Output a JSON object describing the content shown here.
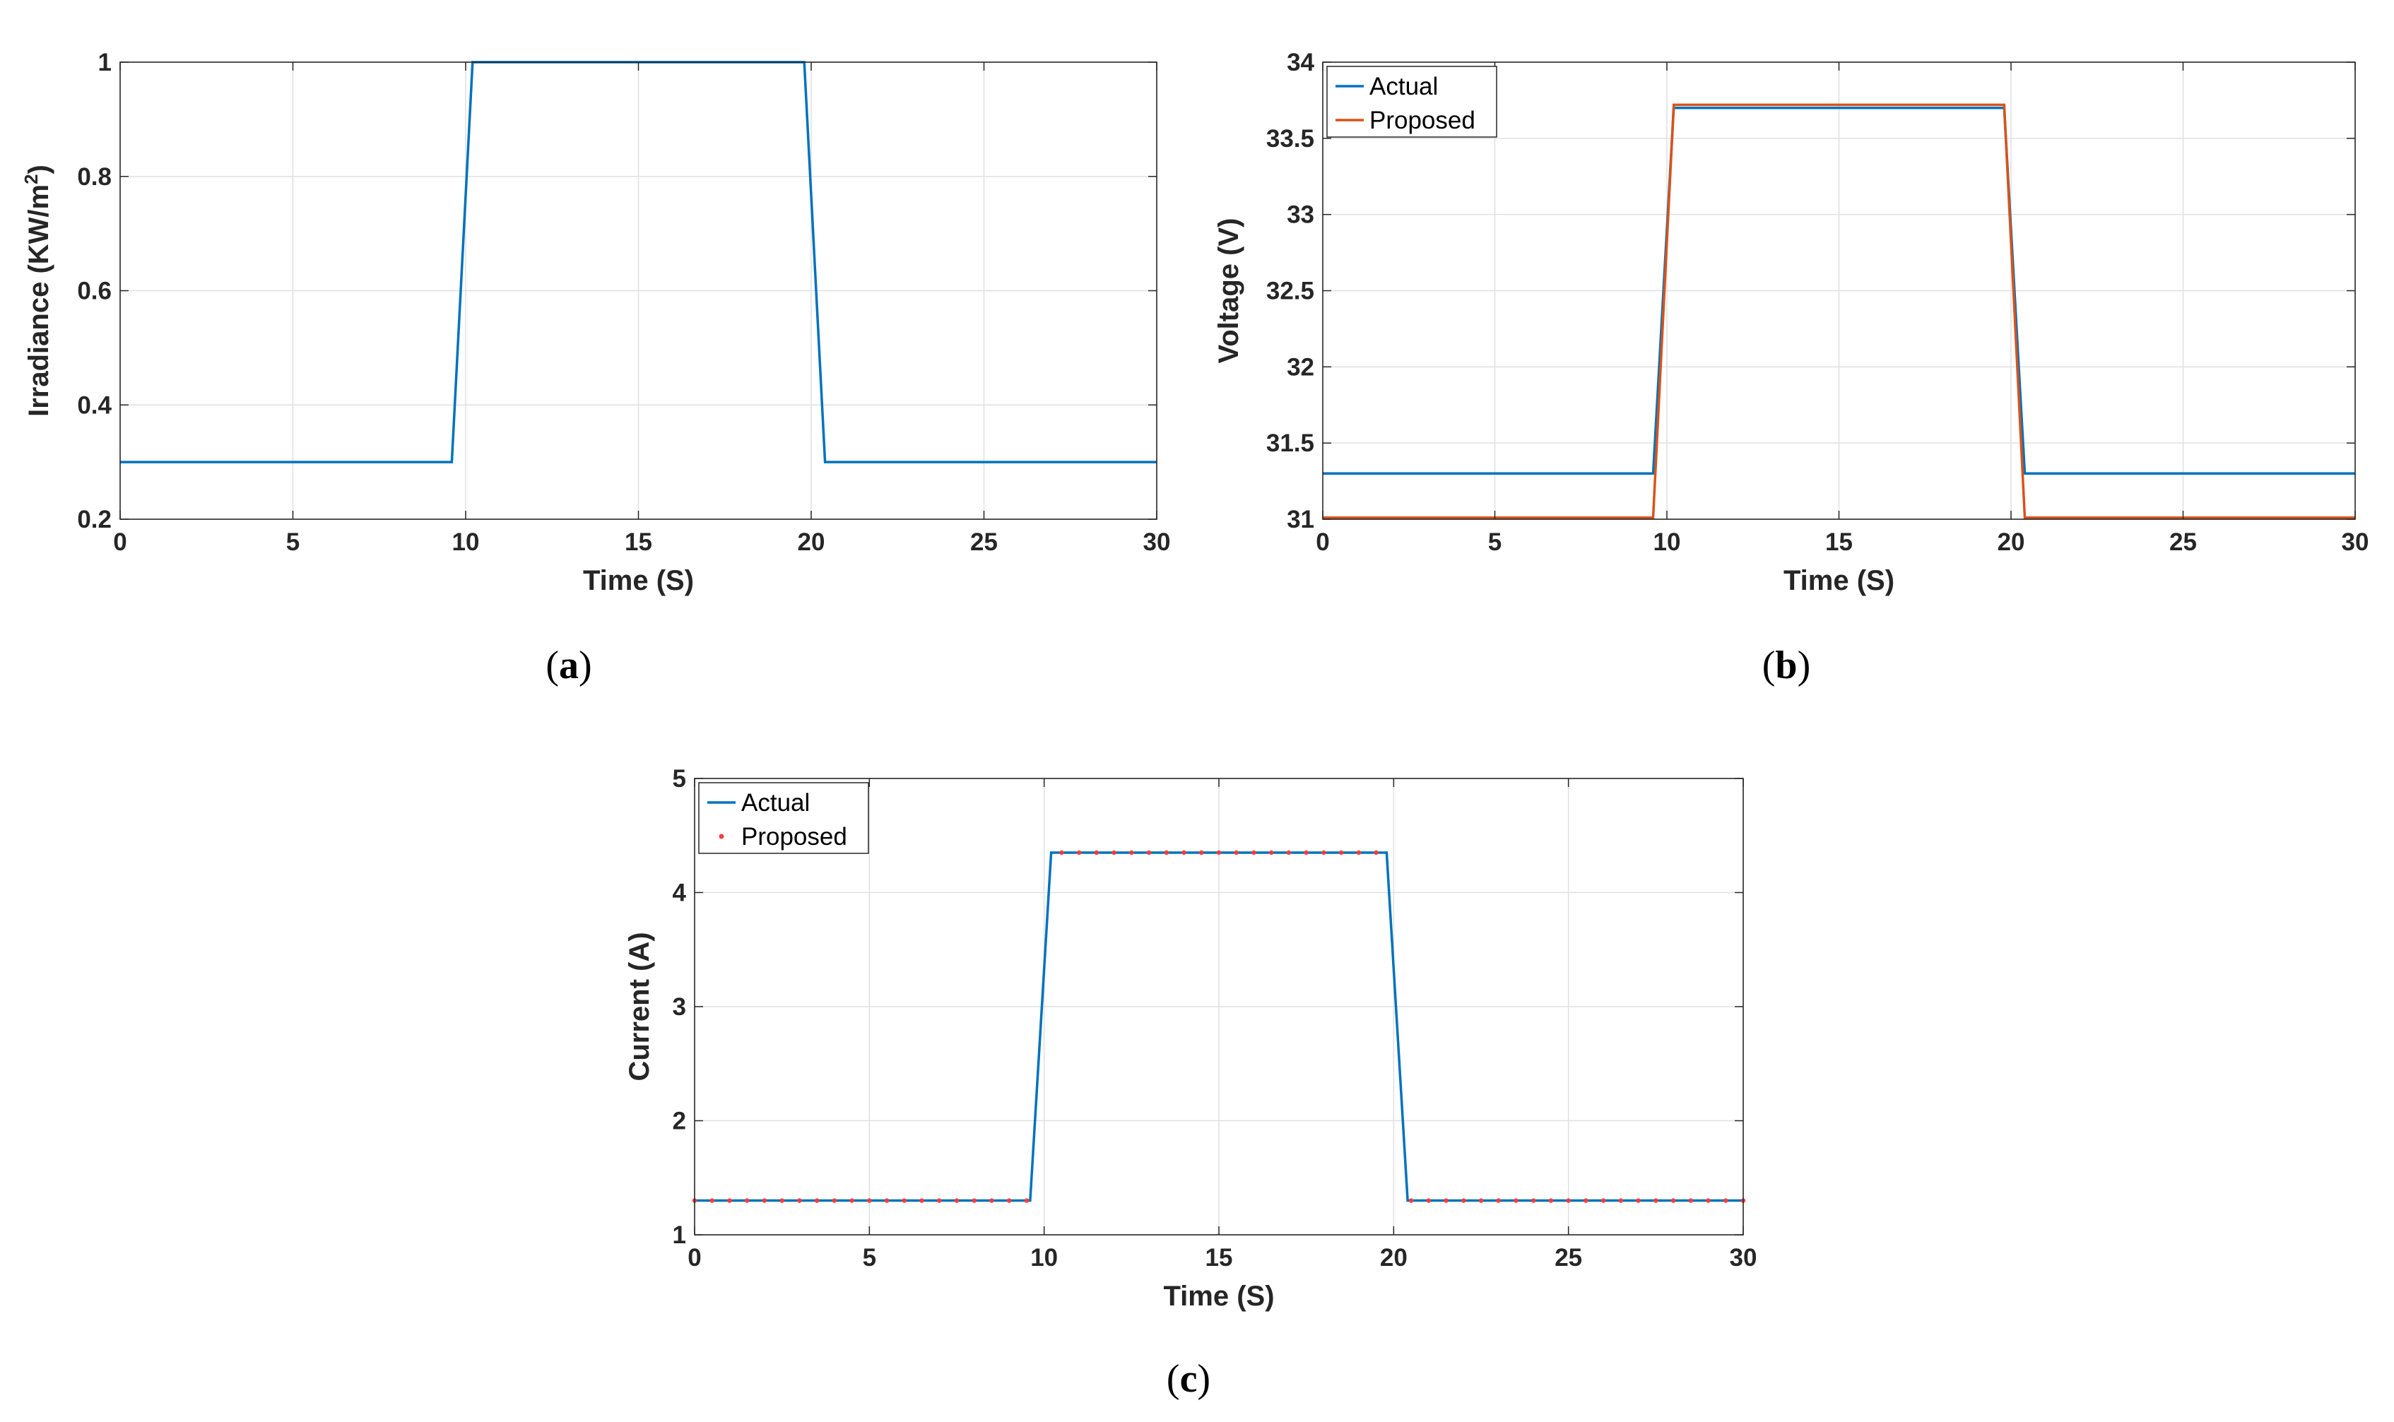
{
  "colors": {
    "actual": "#0072BD",
    "proposed": "#D95319",
    "proposed_marker": "#FF3B3B",
    "grid": "#E0E0E0",
    "axis": "#262626"
  },
  "chart_data": [
    {
      "id": "a",
      "type": "line",
      "caption_letter": "a",
      "xlabel": "Time (S)",
      "ylabel": "Irradiance (KW/m",
      "ylabel_sup": "2",
      "ylabel_end": ")",
      "xlim": [
        0,
        30
      ],
      "ylim": [
        0.2,
        1
      ],
      "xticks": [
        0,
        5,
        10,
        15,
        20,
        25,
        30
      ],
      "xtick_labels": [
        "0",
        "5",
        "10",
        "15",
        "20",
        "25",
        "30"
      ],
      "yticks": [
        0.2,
        0.4,
        0.6,
        0.8,
        1
      ],
      "ytick_labels": [
        "0.2",
        "0.4",
        "0.6",
        "0.8",
        "1"
      ],
      "grid": true,
      "series": [
        {
          "name": "Irradiance",
          "style": "line",
          "color": "#0072BD",
          "x": [
            0,
            9.6,
            10.2,
            19.8,
            20.4,
            30
          ],
          "y": [
            0.3,
            0.3,
            1.0,
            1.0,
            0.3,
            0.3
          ]
        }
      ]
    },
    {
      "id": "b",
      "type": "line",
      "caption_letter": "b",
      "xlabel": "Time (S)",
      "ylabel": "Voltage (V)",
      "xlim": [
        0,
        30
      ],
      "ylim": [
        31,
        34
      ],
      "xticks": [
        0,
        5,
        10,
        15,
        20,
        25,
        30
      ],
      "xtick_labels": [
        "0",
        "5",
        "10",
        "15",
        "20",
        "25",
        "30"
      ],
      "yticks": [
        31,
        31.5,
        32,
        32.5,
        33,
        33.5,
        34
      ],
      "ytick_labels": [
        "31",
        "31.5",
        "32",
        "32.5",
        "33",
        "33.5",
        "34"
      ],
      "grid": true,
      "legend": {
        "position": "top-left",
        "entries": [
          "Actual",
          "Proposed"
        ]
      },
      "series": [
        {
          "name": "Actual",
          "style": "line",
          "color": "#0072BD",
          "x": [
            0,
            9.6,
            10.2,
            19.8,
            20.4,
            30
          ],
          "y": [
            31.3,
            31.3,
            33.7,
            33.7,
            31.3,
            31.3
          ]
        },
        {
          "name": "Proposed",
          "style": "line",
          "color": "#D95319",
          "x": [
            0,
            9.6,
            10.2,
            19.8,
            20.4,
            30
          ],
          "y": [
            31.01,
            31.01,
            33.72,
            33.72,
            31.01,
            31.01
          ]
        }
      ]
    },
    {
      "id": "c",
      "type": "line",
      "caption_letter": "c",
      "xlabel": "Time (S)",
      "ylabel": "Current (A)",
      "xlim": [
        0,
        30
      ],
      "ylim": [
        1,
        5
      ],
      "xticks": [
        0,
        5,
        10,
        15,
        20,
        25,
        30
      ],
      "xtick_labels": [
        "0",
        "5",
        "10",
        "15",
        "20",
        "25",
        "30"
      ],
      "yticks": [
        1,
        2,
        3,
        4,
        5
      ],
      "ytick_labels": [
        "1",
        "2",
        "3",
        "4",
        "5"
      ],
      "grid": true,
      "legend": {
        "position": "top-left",
        "entries": [
          "Actual",
          "Proposed"
        ]
      },
      "series": [
        {
          "name": "Actual",
          "style": "line",
          "color": "#0072BD",
          "x": [
            0,
            9.6,
            10.2,
            19.8,
            20.4,
            30
          ],
          "y": [
            1.3,
            1.3,
            4.35,
            4.35,
            1.3,
            1.3
          ]
        },
        {
          "name": "Proposed",
          "style": "markers",
          "color": "#FF3B3B",
          "x": [
            0,
            0.5,
            1,
            1.5,
            2,
            2.5,
            3,
            3.5,
            4,
            4.5,
            5,
            5.5,
            6,
            6.5,
            7,
            7.5,
            8,
            8.5,
            9,
            9.5,
            10.5,
            11,
            11.5,
            12,
            12.5,
            13,
            13.5,
            14,
            14.5,
            15,
            15.5,
            16,
            16.5,
            17,
            17.5,
            18,
            18.5,
            19,
            19.5,
            20.5,
            21,
            21.5,
            22,
            22.5,
            23,
            23.5,
            24,
            24.5,
            25,
            25.5,
            26,
            26.5,
            27,
            27.5,
            28,
            28.5,
            29,
            29.5,
            30
          ],
          "y": [
            1.3,
            1.3,
            1.3,
            1.3,
            1.3,
            1.3,
            1.3,
            1.3,
            1.3,
            1.3,
            1.3,
            1.3,
            1.3,
            1.3,
            1.3,
            1.3,
            1.3,
            1.3,
            1.3,
            1.3,
            4.35,
            4.35,
            4.35,
            4.35,
            4.35,
            4.35,
            4.35,
            4.35,
            4.35,
            4.35,
            4.35,
            4.35,
            4.35,
            4.35,
            4.35,
            4.35,
            4.35,
            4.35,
            4.35,
            1.3,
            1.3,
            1.3,
            1.3,
            1.3,
            1.3,
            1.3,
            1.3,
            1.3,
            1.3,
            1.3,
            1.3,
            1.3,
            1.3,
            1.3,
            1.3,
            1.3,
            1.3,
            1.3,
            1.3
          ]
        }
      ]
    }
  ]
}
